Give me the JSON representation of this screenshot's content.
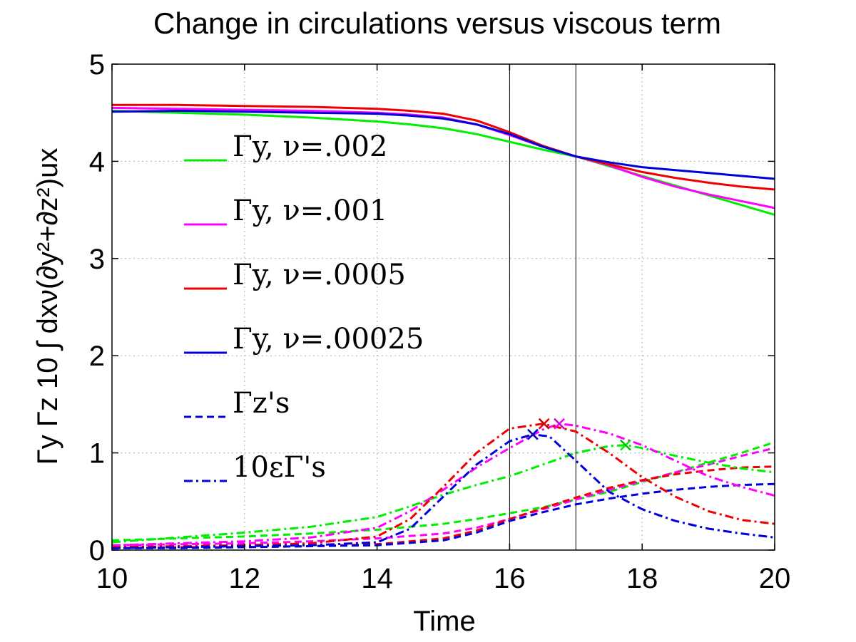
{
  "chart_data": {
    "type": "line",
    "title": "Change in circulations versus viscous term",
    "xlabel": "Time",
    "ylabel": "Γy   Γz   10 ∫ dxν(∂y²+∂z²)ux",
    "xlim": [
      10,
      20
    ],
    "ylim": [
      0,
      5
    ],
    "xticks": [
      10,
      12,
      14,
      16,
      18,
      20
    ],
    "yticks": [
      0,
      1,
      2,
      3,
      4,
      5
    ],
    "grid": true,
    "vertical_lines": [
      16,
      17
    ],
    "colors": {
      "green": "#00ee00",
      "magenta": "#ff00ff",
      "red": "#ee0000",
      "blue": "#0000dd"
    },
    "legend": [
      {
        "label": "Γy, ν=.002",
        "color": "green",
        "style": "solid"
      },
      {
        "label": "Γy, ν=.001",
        "color": "magenta",
        "style": "solid"
      },
      {
        "label": "Γy, ν=.0005",
        "color": "red",
        "style": "solid"
      },
      {
        "label": "Γy, ν=.00025",
        "color": "blue",
        "style": "solid"
      },
      {
        "label": "Γz's",
        "color": "blue",
        "style": "dashed"
      },
      {
        "label": "10εΓ's",
        "color": "blue",
        "style": "dashdot"
      }
    ],
    "series": [
      {
        "name": "Γy, ν=.002",
        "color": "green",
        "style": "solid",
        "x": [
          10,
          11,
          12,
          13,
          14,
          14.5,
          15,
          15.5,
          16,
          16.5,
          17,
          17.5,
          18,
          18.5,
          19,
          19.5,
          20
        ],
        "y": [
          4.52,
          4.5,
          4.48,
          4.45,
          4.41,
          4.38,
          4.34,
          4.28,
          4.2,
          4.12,
          4.05,
          3.95,
          3.85,
          3.75,
          3.65,
          3.55,
          3.45
        ]
      },
      {
        "name": "Γy, ν=.001",
        "color": "magenta",
        "style": "solid",
        "x": [
          10,
          11,
          12,
          13,
          14,
          14.5,
          15,
          15.5,
          16,
          16.5,
          17,
          17.5,
          18,
          18.5,
          19,
          19.5,
          20
        ],
        "y": [
          4.55,
          4.54,
          4.53,
          4.52,
          4.5,
          4.48,
          4.45,
          4.38,
          4.27,
          4.15,
          4.05,
          3.96,
          3.84,
          3.74,
          3.66,
          3.59,
          3.52
        ]
      },
      {
        "name": "Γy, ν=.0005",
        "color": "red",
        "style": "solid",
        "x": [
          10,
          11,
          12,
          13,
          14,
          14.5,
          15,
          15.5,
          16,
          16.5,
          17,
          17.5,
          18,
          18.5,
          19,
          19.5,
          20
        ],
        "y": [
          4.58,
          4.58,
          4.57,
          4.56,
          4.54,
          4.52,
          4.49,
          4.42,
          4.3,
          4.16,
          4.05,
          3.97,
          3.89,
          3.83,
          3.78,
          3.74,
          3.71
        ]
      },
      {
        "name": "Γy, ν=.00025",
        "color": "blue",
        "style": "solid",
        "x": [
          10,
          11,
          12,
          13,
          14,
          14.5,
          15,
          15.5,
          16,
          16.5,
          17,
          17.5,
          18,
          18.5,
          19,
          19.5,
          20
        ],
        "y": [
          4.51,
          4.52,
          4.51,
          4.5,
          4.49,
          4.47,
          4.44,
          4.38,
          4.28,
          4.15,
          4.05,
          3.99,
          3.94,
          3.91,
          3.88,
          3.85,
          3.82
        ]
      },
      {
        "name": "Γz ν=.002",
        "color": "green",
        "style": "dashed",
        "x": [
          10,
          11,
          12,
          13,
          14,
          15,
          15.5,
          16,
          16.5,
          17,
          17.5,
          18,
          18.5,
          19,
          19.5,
          20
        ],
        "y": [
          0.1,
          0.12,
          0.14,
          0.17,
          0.21,
          0.27,
          0.32,
          0.38,
          0.44,
          0.52,
          0.6,
          0.7,
          0.8,
          0.9,
          1.0,
          1.11
        ]
      },
      {
        "name": "Γz ν=.001",
        "color": "magenta",
        "style": "dashed",
        "x": [
          10,
          11,
          12,
          13,
          14,
          15,
          15.5,
          16,
          16.5,
          17,
          17.5,
          18,
          18.5,
          19,
          19.5,
          20
        ],
        "y": [
          0.05,
          0.06,
          0.07,
          0.09,
          0.12,
          0.17,
          0.23,
          0.32,
          0.42,
          0.52,
          0.62,
          0.71,
          0.8,
          0.88,
          0.97,
          1.05
        ]
      },
      {
        "name": "Γz ν=.0005",
        "color": "red",
        "style": "dashed",
        "x": [
          10,
          11,
          12,
          13,
          14,
          15,
          15.5,
          16,
          16.5,
          17,
          17.5,
          18,
          18.5,
          19,
          19.5,
          20
        ],
        "y": [
          0.02,
          0.03,
          0.03,
          0.04,
          0.06,
          0.12,
          0.2,
          0.32,
          0.43,
          0.54,
          0.64,
          0.72,
          0.78,
          0.82,
          0.85,
          0.86
        ]
      },
      {
        "name": "Γz ν=.00025",
        "color": "blue",
        "style": "dashed",
        "x": [
          10,
          11,
          12,
          13,
          14,
          15,
          15.5,
          16,
          16.5,
          17,
          17.5,
          18,
          18.5,
          19,
          19.5,
          20
        ],
        "y": [
          0.02,
          0.02,
          0.03,
          0.04,
          0.05,
          0.1,
          0.18,
          0.3,
          0.39,
          0.47,
          0.53,
          0.58,
          0.62,
          0.65,
          0.67,
          0.68
        ]
      },
      {
        "name": "10εΓ ν=.002",
        "color": "green",
        "style": "dashdot",
        "x": [
          10,
          11,
          12,
          13,
          14,
          14.5,
          15,
          15.5,
          16,
          16.5,
          17,
          17.5,
          17.75,
          18,
          18.5,
          19,
          19.5,
          20
        ],
        "y": [
          0.08,
          0.13,
          0.18,
          0.24,
          0.34,
          0.45,
          0.57,
          0.67,
          0.76,
          0.88,
          1.0,
          1.07,
          1.08,
          1.05,
          0.97,
          0.9,
          0.84,
          0.8
        ]
      },
      {
        "name": "10εΓ ν=.001",
        "color": "magenta",
        "style": "dashdot",
        "x": [
          10,
          11,
          12,
          13,
          14,
          14.5,
          15,
          15.5,
          16,
          16.5,
          16.75,
          17,
          17.5,
          18,
          18.5,
          19,
          19.5,
          20
        ],
        "y": [
          0.05,
          0.07,
          0.09,
          0.13,
          0.23,
          0.4,
          0.62,
          0.85,
          1.05,
          1.24,
          1.3,
          1.28,
          1.2,
          1.08,
          0.92,
          0.76,
          0.65,
          0.56
        ]
      },
      {
        "name": "10εΓ ν=.0005",
        "color": "red",
        "style": "dashdot",
        "x": [
          10,
          11,
          12,
          13,
          14,
          14.5,
          15,
          15.5,
          16,
          16.5,
          17,
          17.5,
          18,
          18.5,
          19,
          19.5,
          20
        ],
        "y": [
          0.03,
          0.04,
          0.05,
          0.07,
          0.14,
          0.32,
          0.65,
          1.0,
          1.25,
          1.3,
          1.22,
          1.0,
          0.75,
          0.55,
          0.4,
          0.31,
          0.27
        ]
      },
      {
        "name": "10εΓ ν=.00025",
        "color": "blue",
        "style": "dashdot",
        "x": [
          10,
          11,
          12,
          13,
          14,
          14.5,
          15,
          15.5,
          16,
          16.35,
          16.6,
          17,
          17.5,
          18,
          18.5,
          19,
          19.5,
          20
        ],
        "y": [
          0.02,
          0.03,
          0.04,
          0.05,
          0.08,
          0.22,
          0.55,
          0.88,
          1.12,
          1.19,
          1.17,
          0.92,
          0.6,
          0.42,
          0.3,
          0.22,
          0.17,
          0.13
        ]
      }
    ],
    "markers": [
      {
        "x": 16.35,
        "y": 1.19,
        "color": "blue",
        "symbol": "x"
      },
      {
        "x": 16.52,
        "y": 1.3,
        "color": "red",
        "symbol": "x"
      },
      {
        "x": 16.75,
        "y": 1.3,
        "color": "magenta",
        "symbol": "x"
      },
      {
        "x": 17.75,
        "y": 1.08,
        "color": "green",
        "symbol": "x"
      }
    ]
  }
}
